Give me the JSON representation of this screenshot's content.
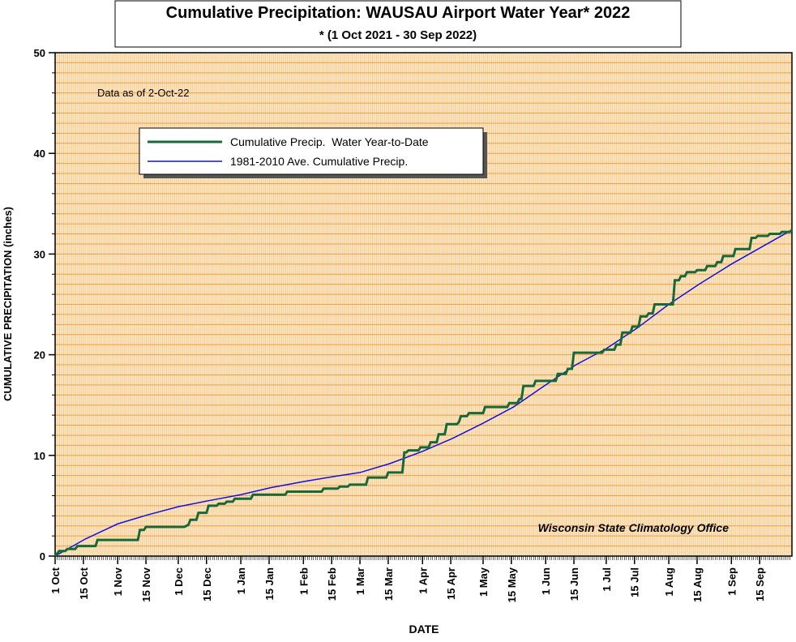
{
  "chart_data": {
    "type": "line",
    "title": "Cumulative Precipitation: WAUSAU Airport Water Year* 2022",
    "subtitle": "* (1 Oct 2021 - 30 Sep 2022)",
    "y_label": "CUMULATIVE PRECIPITATION (inches)",
    "x_label": "DATE",
    "annotations": [
      "Data as of 2-Oct-22",
      "Wisconsin State Climatology Office"
    ],
    "xlim": [
      0,
      365
    ],
    "xticks": [
      {
        "value": 0,
        "label": "1 Oct"
      },
      {
        "value": 14,
        "label": "15 Oct"
      },
      {
        "value": 31,
        "label": "1 Nov"
      },
      {
        "value": 45,
        "label": "15 Nov"
      },
      {
        "value": 61,
        "label": "1 Dec"
      },
      {
        "value": 75,
        "label": "15 Dec"
      },
      {
        "value": 92,
        "label": "1 Jan"
      },
      {
        "value": 106,
        "label": "15 Jan"
      },
      {
        "value": 123,
        "label": "1 Feb"
      },
      {
        "value": 137,
        "label": "15 Feb"
      },
      {
        "value": 151,
        "label": "1 Mar"
      },
      {
        "value": 165,
        "label": "15 Mar"
      },
      {
        "value": 182,
        "label": "1 Apr"
      },
      {
        "value": 196,
        "label": "15 Apr"
      },
      {
        "value": 212,
        "label": "1 May"
      },
      {
        "value": 226,
        "label": "15 May"
      },
      {
        "value": 243,
        "label": "1 Jun"
      },
      {
        "value": 257,
        "label": "15 Jun"
      },
      {
        "value": 273,
        "label": "1 Jul"
      },
      {
        "value": 287,
        "label": "15 Jul"
      },
      {
        "value": 304,
        "label": "1 Aug"
      },
      {
        "value": 318,
        "label": "15 Aug"
      },
      {
        "value": 335,
        "label": "1 Sep"
      },
      {
        "value": 349,
        "label": "15 Sep"
      }
    ],
    "ylim": [
      0,
      50
    ],
    "yticks": [
      0,
      10,
      20,
      30,
      40,
      50
    ],
    "grid": true,
    "legend": "upper left",
    "series": [
      {
        "name": "Cumulative Precip.  Water Year-to-Date",
        "color": "#17693a",
        "x": [
          0,
          2,
          5,
          6,
          10,
          11,
          20,
          21,
          41,
          42,
          44,
          45,
          64,
          66,
          67,
          70,
          71,
          75,
          76,
          80,
          81,
          84,
          85,
          88,
          89,
          97,
          98,
          114,
          115,
          132,
          133,
          140,
          141,
          145,
          146,
          154,
          155,
          164,
          165,
          172,
          173,
          174,
          175,
          180,
          181,
          185,
          186,
          189,
          190,
          193,
          194,
          199,
          200,
          201,
          204,
          205,
          212,
          213,
          224,
          225,
          229,
          230,
          231,
          232,
          237,
          238,
          248,
          249,
          253,
          254,
          256,
          257,
          271,
          272,
          277,
          278,
          280,
          281,
          285,
          286,
          289,
          290,
          293,
          294,
          296,
          297,
          306,
          307,
          309,
          310,
          312,
          313,
          317,
          318,
          322,
          323,
          327,
          328,
          330,
          331,
          336,
          337,
          344,
          345,
          347,
          348,
          353,
          354,
          359,
          360,
          364,
          365
        ],
        "values": [
          0,
          0.5,
          0.5,
          0.7,
          0.7,
          1.0,
          1.0,
          1.6,
          1.6,
          2.6,
          2.6,
          2.9,
          2.9,
          3.1,
          3.6,
          3.6,
          4.3,
          4.3,
          5.0,
          5.0,
          5.2,
          5.2,
          5.4,
          5.4,
          5.7,
          5.7,
          6.1,
          6.1,
          6.4,
          6.4,
          6.7,
          6.7,
          6.9,
          6.9,
          7.1,
          7.1,
          7.8,
          7.8,
          8.3,
          8.3,
          10.3,
          10.3,
          10.5,
          10.5,
          10.8,
          10.8,
          11.3,
          11.3,
          12.1,
          12.1,
          13.1,
          13.1,
          13.3,
          13.9,
          13.9,
          14.2,
          14.2,
          14.8,
          14.8,
          15.2,
          15.2,
          15.6,
          15.6,
          16.9,
          16.9,
          17.4,
          17.4,
          18.1,
          18.1,
          18.6,
          18.6,
          20.2,
          20.2,
          20.5,
          20.5,
          21.0,
          21.0,
          22.2,
          22.2,
          22.8,
          22.8,
          23.8,
          23.8,
          24.1,
          24.1,
          25.0,
          25.0,
          27.4,
          27.4,
          27.8,
          27.8,
          28.2,
          28.2,
          28.4,
          28.4,
          28.8,
          28.8,
          29.2,
          29.2,
          29.8,
          29.8,
          30.5,
          30.5,
          31.6,
          31.6,
          31.8,
          31.8,
          32.0,
          32.0,
          32.2,
          32.2,
          32.4
        ]
      },
      {
        "name": "1981-2010 Ave. Cumulative Precip.",
        "color": "#1010e0",
        "x": [
          0,
          15,
          31,
          46,
          61,
          76,
          92,
          107,
          123,
          138,
          151,
          166,
          182,
          197,
          212,
          227,
          243,
          258,
          273,
          288,
          304,
          319,
          335,
          350,
          365
        ],
        "values": [
          0,
          1.7,
          3.2,
          4.1,
          4.9,
          5.5,
          6.1,
          6.8,
          7.4,
          7.9,
          8.3,
          9.2,
          10.4,
          11.7,
          13.2,
          14.8,
          17.0,
          19.0,
          20.6,
          22.6,
          25.0,
          27.0,
          29.0,
          30.7,
          32.4
        ]
      }
    ]
  }
}
